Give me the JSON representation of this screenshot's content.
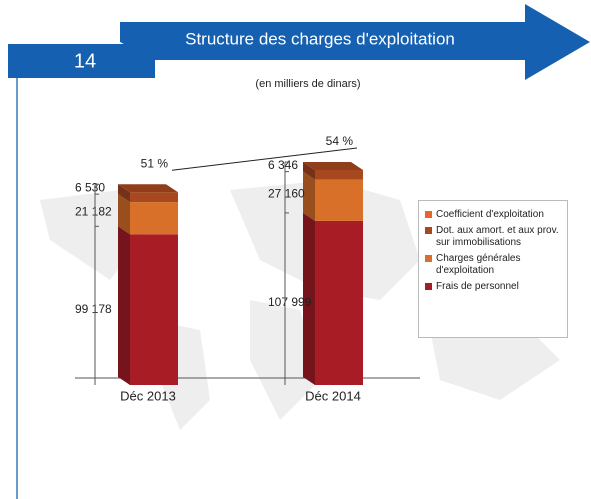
{
  "page_number": "14",
  "chart_data": {
    "type": "bar",
    "stacked": true,
    "title": "Structure des charges d'exploitation",
    "subtitle": "(en milliers de dinars)",
    "categories": [
      "Déc 2013",
      "Déc 2014"
    ],
    "series": [
      {
        "name": "Coefficient d'exploitation",
        "type": "line",
        "color": "#e8642a",
        "values": [
          51,
          54
        ],
        "value_labels": [
          "51 %",
          "54 %"
        ]
      },
      {
        "name": "Dot. aux amort. et aux prov. sur immobilisations",
        "color": "#a8481f",
        "values": [
          6530,
          6346
        ],
        "value_labels": [
          "6 530",
          "6 346"
        ]
      },
      {
        "name": "Charges générales d'exploitation",
        "color": "#d9702a",
        "values": [
          21182,
          27160
        ],
        "value_labels": [
          "21 182",
          "27 160"
        ]
      },
      {
        "name": "Frais de personnel",
        "color": "#a81c26",
        "values": [
          99178,
          107999
        ],
        "value_labels": [
          "99 178",
          "107 999"
        ]
      }
    ]
  }
}
